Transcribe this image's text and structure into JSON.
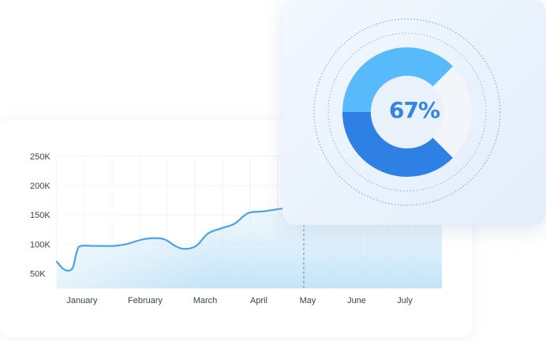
{
  "chart_data": {
    "type": "area",
    "categories": [
      "January",
      "February",
      "March",
      "April",
      "May",
      "June",
      "July"
    ],
    "y_ticks": [
      "250K",
      "200K",
      "150K",
      "100K",
      "50K"
    ],
    "ylim": [
      25,
      250
    ],
    "series": [
      {
        "values": [
          [
            0.0,
            70
          ],
          [
            0.25,
            58
          ],
          [
            0.5,
            55
          ],
          [
            0.65,
            62
          ],
          [
            0.8,
            88
          ],
          [
            0.95,
            97
          ],
          [
            1.2,
            97
          ],
          [
            1.5,
            97
          ],
          [
            1.7,
            100
          ],
          [
            2.0,
            109
          ],
          [
            2.3,
            109
          ],
          [
            2.5,
            97
          ],
          [
            2.65,
            92
          ],
          [
            2.85,
            97
          ],
          [
            3.05,
            118
          ],
          [
            3.3,
            127
          ],
          [
            3.55,
            135
          ],
          [
            3.8,
            153
          ],
          [
            4.1,
            156
          ],
          [
            4.5,
            161
          ],
          [
            4.9,
            164
          ],
          [
            5.3,
            166
          ],
          [
            5.6,
            167
          ],
          [
            5.8,
            167
          ]
        ]
      }
    ],
    "marker_category": "May",
    "grid": true
  },
  "donut": {
    "percent": 67,
    "label": "67%",
    "colors": {
      "primary": "#2f80e4",
      "secondary": "#58bafa",
      "remainder": "#f2f6fb"
    }
  },
  "colors": {
    "line": "#4aa3e6",
    "fill": "#cfe8f8",
    "grid": "#eef2f6",
    "axis_text": "#3b4452"
  }
}
